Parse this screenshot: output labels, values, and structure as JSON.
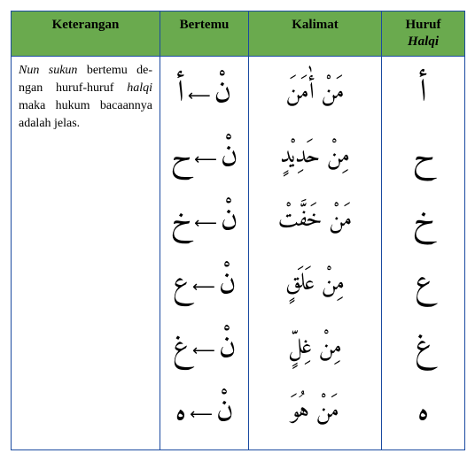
{
  "colors": {
    "header_bg": "#6aaa4e",
    "border": "#1a4aa0",
    "text": "#000000"
  },
  "headers": {
    "keterangan": "Keterangan",
    "bertemu": "Bertemu",
    "kalimat": "Kalimat",
    "huruf_line1": "Huruf",
    "huruf_line2": "Halqi"
  },
  "keterangan": {
    "part1": "Nun sukun",
    "part2": " bertemu de­ngan huruf-huruf ",
    "part3": "halqi",
    "part4": " maka hukum bacaannya adalah jelas."
  },
  "rows": [
    {
      "huruf": "أ",
      "nun": "نْ",
      "target": "أ",
      "kalimat": "مَنْ أٰمَنَ"
    },
    {
      "huruf": "ح",
      "nun": "نْ",
      "target": "ح",
      "kalimat": "مِنْ حَدِيْدٍ"
    },
    {
      "huruf": "خ",
      "nun": "نْ",
      "target": "خ",
      "kalimat": "مَنْ خَفَّتْ"
    },
    {
      "huruf": "ع",
      "nun": "نْ",
      "target": "ع",
      "kalimat": "مِنْ عَلَقٍ"
    },
    {
      "huruf": "غ",
      "nun": "نْ",
      "target": "غ",
      "kalimat": "مِنْ غِلٍّ"
    },
    {
      "huruf": "ه",
      "nun": "نْ",
      "target": "ه",
      "kalimat": "مَنْ هُوَ"
    }
  ],
  "arrow": "⟵"
}
